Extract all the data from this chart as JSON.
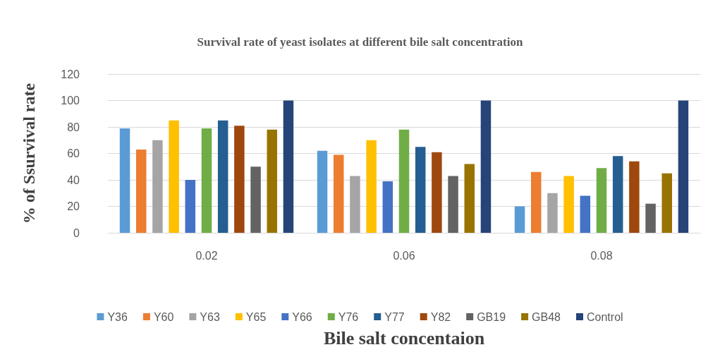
{
  "chart_data": {
    "type": "bar",
    "title": "Survival rate of yeast isolates at different bile salt concentration",
    "xlabel": "Bile salt concentaion",
    "ylabel": "% of Ssurvival rate",
    "categories": [
      "0.02",
      "0.06",
      "0.08"
    ],
    "series": [
      {
        "name": "Y36",
        "color": "#5b9bd5",
        "values": [
          79,
          62,
          20
        ]
      },
      {
        "name": "Y60",
        "color": "#ed7d31",
        "values": [
          63,
          59,
          46
        ]
      },
      {
        "name": "Y63",
        "color": "#a5a5a5",
        "values": [
          70,
          43,
          30
        ]
      },
      {
        "name": "Y65",
        "color": "#ffc000",
        "values": [
          85,
          70,
          43
        ]
      },
      {
        "name": "Y66",
        "color": "#4472c4",
        "values": [
          40,
          39,
          28
        ]
      },
      {
        "name": "Y76",
        "color": "#70ad47",
        "values": [
          79,
          78,
          49
        ]
      },
      {
        "name": "Y77",
        "color": "#255e91",
        "values": [
          85,
          65,
          58
        ]
      },
      {
        "name": "Y82",
        "color": "#9e480e",
        "values": [
          81,
          61,
          54
        ]
      },
      {
        "name": "GB19",
        "color": "#636363",
        "values": [
          50,
          43,
          22
        ]
      },
      {
        "name": "GB48",
        "color": "#997300",
        "values": [
          78,
          52,
          45
        ]
      },
      {
        "name": "Control",
        "color": "#264478",
        "values": [
          100,
          100,
          100
        ]
      }
    ],
    "ylim": [
      0,
      120
    ],
    "yticks": [
      0,
      20,
      40,
      60,
      80,
      100,
      120
    ],
    "grid": "y",
    "legend": "bottom"
  }
}
